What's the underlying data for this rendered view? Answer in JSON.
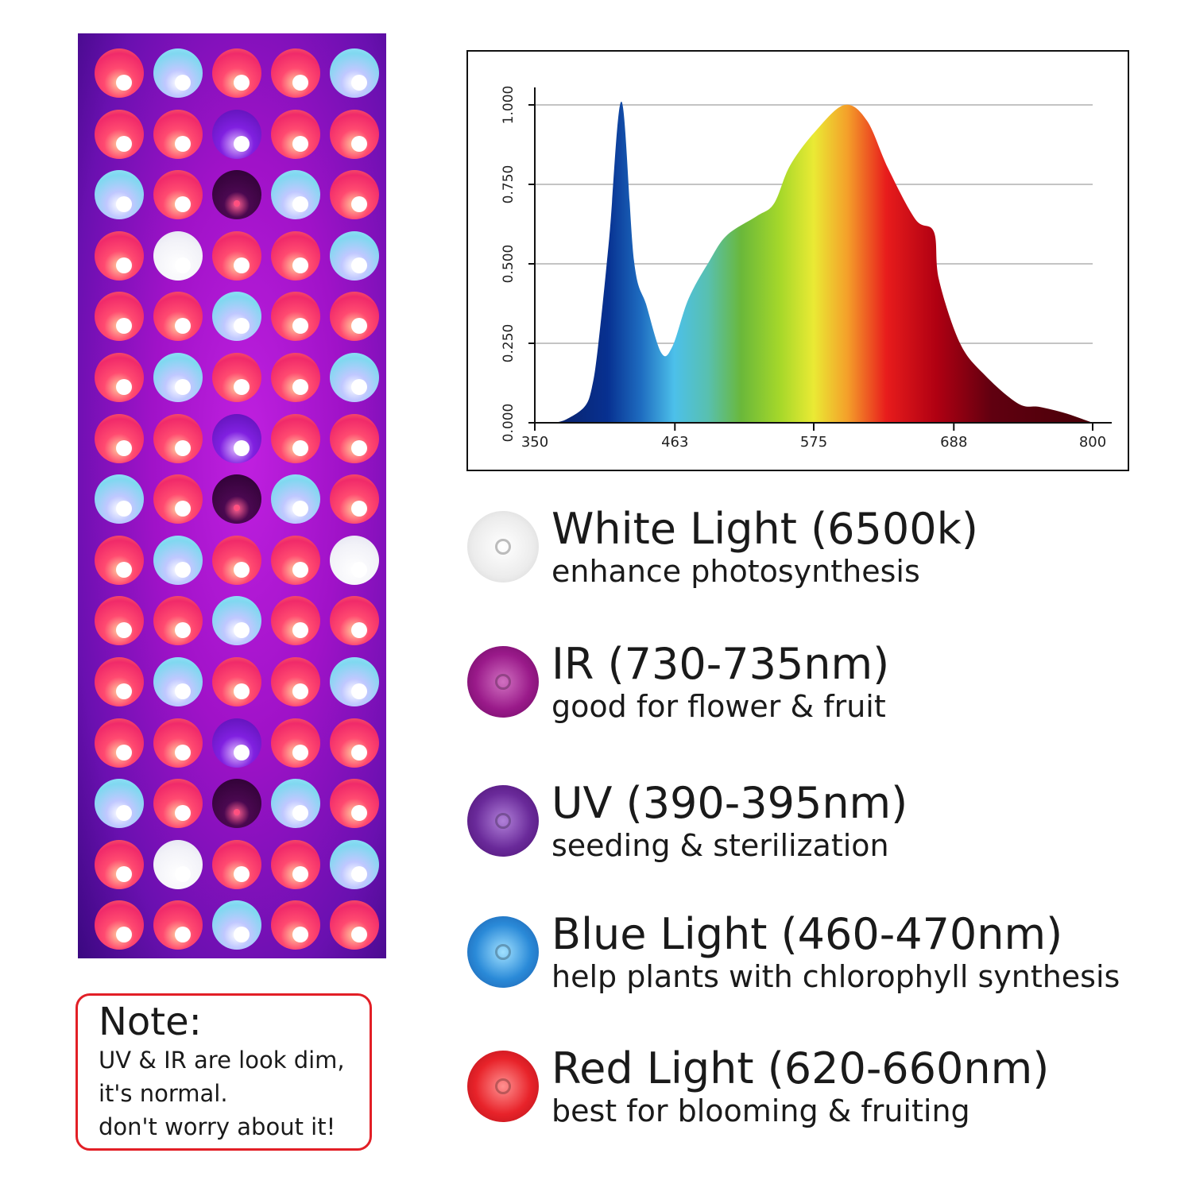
{
  "panel": {
    "led_rows": [
      [
        "R",
        "B",
        "R",
        "R",
        "B"
      ],
      [
        "R",
        "R",
        "U",
        "R",
        "R"
      ],
      [
        "B",
        "R",
        "I",
        "B",
        "R"
      ],
      [
        "R",
        "W",
        "R",
        "R",
        "B"
      ],
      [
        "R",
        "R",
        "B",
        "R",
        "R"
      ],
      [
        "R",
        "B",
        "R",
        "R",
        "B"
      ],
      [
        "R",
        "R",
        "U",
        "R",
        "R"
      ],
      [
        "B",
        "R",
        "I",
        "B",
        "R"
      ],
      [
        "R",
        "B",
        "R",
        "R",
        "W"
      ],
      [
        "R",
        "R",
        "B",
        "R",
        "R"
      ],
      [
        "R",
        "B",
        "R",
        "R",
        "B"
      ],
      [
        "R",
        "R",
        "U",
        "R",
        "R"
      ],
      [
        "B",
        "R",
        "I",
        "B",
        "R"
      ],
      [
        "R",
        "W",
        "R",
        "R",
        "B"
      ],
      [
        "R",
        "R",
        "B",
        "R",
        "R"
      ]
    ]
  },
  "note": {
    "title": "Note:",
    "lines": [
      "UV & IR are look dim,",
      "it's normal.",
      "don't worry about it!"
    ],
    "border_color": "#e21f26"
  },
  "chart_data": {
    "type": "area",
    "xlim": [
      350,
      800
    ],
    "ylim": [
      0,
      1.0
    ],
    "xticks": [
      "350",
      "463",
      "575",
      "688",
      "800"
    ],
    "yticks": [
      "0.000",
      "0.250",
      "0.500",
      "0.750",
      "1.000"
    ],
    "grid": true,
    "x": [
      365,
      375,
      390,
      396,
      401,
      410,
      420,
      430,
      440,
      452,
      461,
      474,
      491,
      505,
      529,
      543,
      556,
      577,
      600,
      618,
      635,
      657,
      672,
      676,
      693,
      713,
      740,
      757,
      778,
      800
    ],
    "y": [
      0,
      0.01,
      0.05,
      0.11,
      0.24,
      0.58,
      1.01,
      0.51,
      0.37,
      0.22,
      0.24,
      0.39,
      0.51,
      0.59,
      0.65,
      0.69,
      0.81,
      0.92,
      1.0,
      0.95,
      0.8,
      0.64,
      0.6,
      0.45,
      0.25,
      0.15,
      0.06,
      0.05,
      0.03,
      0
    ]
  },
  "legend": [
    {
      "title": "White Light (6500k)",
      "sub": "enhance photosynthesis",
      "color": "#e8e8e8"
    },
    {
      "title": "IR (730-735nm)",
      "sub": "good for flower & fruit",
      "color": "#9a1a8a"
    },
    {
      "title": "UV (390-395nm)",
      "sub": "seeding & sterilization",
      "color": "#6a2a9a"
    },
    {
      "title": "Blue Light (460-470nm)",
      "sub": "help plants with chlorophyll synthesis",
      "color": "#2a8ad8"
    },
    {
      "title": "Red Light (620-660nm)",
      "sub": "best for blooming & fruiting",
      "color": "#e8232a"
    }
  ]
}
